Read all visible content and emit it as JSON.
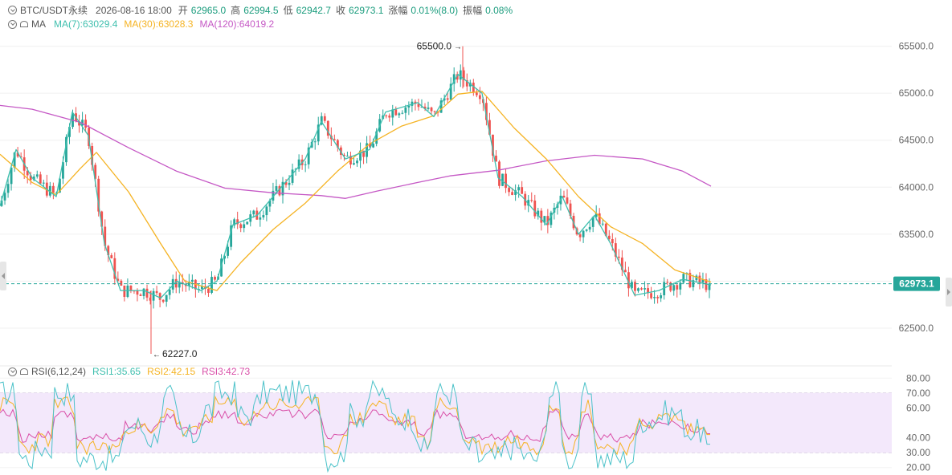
{
  "header": {
    "symbol": "BTC/USDT永续",
    "datetime": "2026-08-16 18:00",
    "open_label": "开",
    "open": "62965.0",
    "high_label": "高",
    "high": "62994.5",
    "low_label": "低",
    "low": "62942.7",
    "close_label": "收",
    "close": "62973.1",
    "change_label": "涨幅",
    "change": "0.01%(8.0)",
    "amplitude_label": "振幅",
    "amplitude": "0.08%"
  },
  "ma_legend": {
    "label": "MA",
    "ma7": "MA(7):63029.4",
    "ma30": "MA(30):63028.3",
    "ma120": "MA(120):64019.2"
  },
  "rsi_legend": {
    "label": "RSI(6,12,24)",
    "rsi1": "RSI1:35.65",
    "rsi2": "RSI2:42.15",
    "rsi3": "RSI3:42.73"
  },
  "colors": {
    "up": "#26a69a",
    "down": "#ef5350",
    "ma7": "#3fbfae",
    "ma30": "#f5b323",
    "ma120": "#c558c5",
    "rsi1": "#4cc2c9",
    "rsi2": "#f5b323",
    "rsi3": "#d94fa8",
    "current_price_bg": "#26a69a",
    "rsi_band": "#f3e8fb"
  },
  "chart_data": [
    {
      "type": "candlestick",
      "y_ticks": [
        "65500.0",
        "65000.0",
        "64500.0",
        "64000.0",
        "63500.0",
        "63000.0",
        "62500.0"
      ],
      "ylim": [
        62150,
        65650
      ],
      "current_price": "62973.1",
      "max_label": "65500.0",
      "max_value": 65500,
      "min_label": "62227.0",
      "min_value": 62227,
      "series": [
        {
          "name": "MA(7)",
          "value": 63029.4
        },
        {
          "name": "MA(30)",
          "value": 63028.3
        },
        {
          "name": "MA(120)",
          "value": 64019.2
        }
      ],
      "ma120_path": [
        [
          0,
          64870
        ],
        [
          40,
          64830
        ],
        [
          100,
          64690
        ],
        [
          160,
          64420
        ],
        [
          220,
          64170
        ],
        [
          280,
          63990
        ],
        [
          340,
          63940
        ],
        [
          400,
          63910
        ],
        [
          430,
          63880
        ],
        [
          470,
          63960
        ],
        [
          520,
          64050
        ],
        [
          560,
          64120
        ],
        [
          620,
          64180
        ],
        [
          680,
          64280
        ],
        [
          740,
          64340
        ],
        [
          800,
          64300
        ],
        [
          850,
          64170
        ],
        [
          885,
          64010
        ]
      ],
      "ma30_path": [
        [
          0,
          64350
        ],
        [
          40,
          64050
        ],
        [
          70,
          63920
        ],
        [
          100,
          64200
        ],
        [
          120,
          64370
        ],
        [
          160,
          63950
        ],
        [
          200,
          63400
        ],
        [
          230,
          63000
        ],
        [
          270,
          62900
        ],
        [
          300,
          63200
        ],
        [
          340,
          63550
        ],
        [
          380,
          63830
        ],
        [
          420,
          64170
        ],
        [
          460,
          64460
        ],
        [
          500,
          64650
        ],
        [
          540,
          64760
        ],
        [
          570,
          64990
        ],
        [
          600,
          65020
        ],
        [
          640,
          64630
        ],
        [
          680,
          64300
        ],
        [
          720,
          63900
        ],
        [
          760,
          63580
        ],
        [
          800,
          63400
        ],
        [
          840,
          63120
        ],
        [
          885,
          62990
        ]
      ],
      "ma7_path": [
        [
          0,
          63800
        ],
        [
          20,
          64400
        ],
        [
          40,
          64100
        ],
        [
          70,
          63900
        ],
        [
          90,
          64800
        ],
        [
          110,
          64550
        ],
        [
          130,
          63400
        ],
        [
          150,
          62900
        ],
        [
          180,
          62900
        ],
        [
          200,
          62820
        ],
        [
          220,
          63000
        ],
        [
          250,
          62900
        ],
        [
          270,
          63000
        ],
        [
          290,
          63600
        ],
        [
          320,
          63700
        ],
        [
          350,
          64000
        ],
        [
          380,
          64300
        ],
        [
          400,
          64700
        ],
        [
          430,
          64300
        ],
        [
          460,
          64400
        ],
        [
          480,
          64800
        ],
        [
          520,
          64900
        ],
        [
          540,
          64750
        ],
        [
          570,
          65200
        ],
        [
          600,
          65000
        ],
        [
          620,
          64100
        ],
        [
          650,
          63900
        ],
        [
          680,
          63600
        ],
        [
          700,
          63900
        ],
        [
          720,
          63500
        ],
        [
          740,
          63700
        ],
        [
          760,
          63400
        ],
        [
          790,
          62850
        ],
        [
          820,
          62900
        ],
        [
          850,
          63020
        ],
        [
          885,
          62960
        ]
      ]
    },
    {
      "type": "line",
      "y_ticks": [
        "80.00",
        "70.00",
        "60.00",
        "40.00",
        "30.00",
        "20.00"
      ],
      "ylim": [
        15,
        85
      ],
      "band": [
        30,
        70
      ],
      "series": [
        {
          "name": "RSI1",
          "value": 35.65
        },
        {
          "name": "RSI2",
          "value": 42.15
        },
        {
          "name": "RSI3",
          "value": 42.73
        }
      ]
    }
  ]
}
